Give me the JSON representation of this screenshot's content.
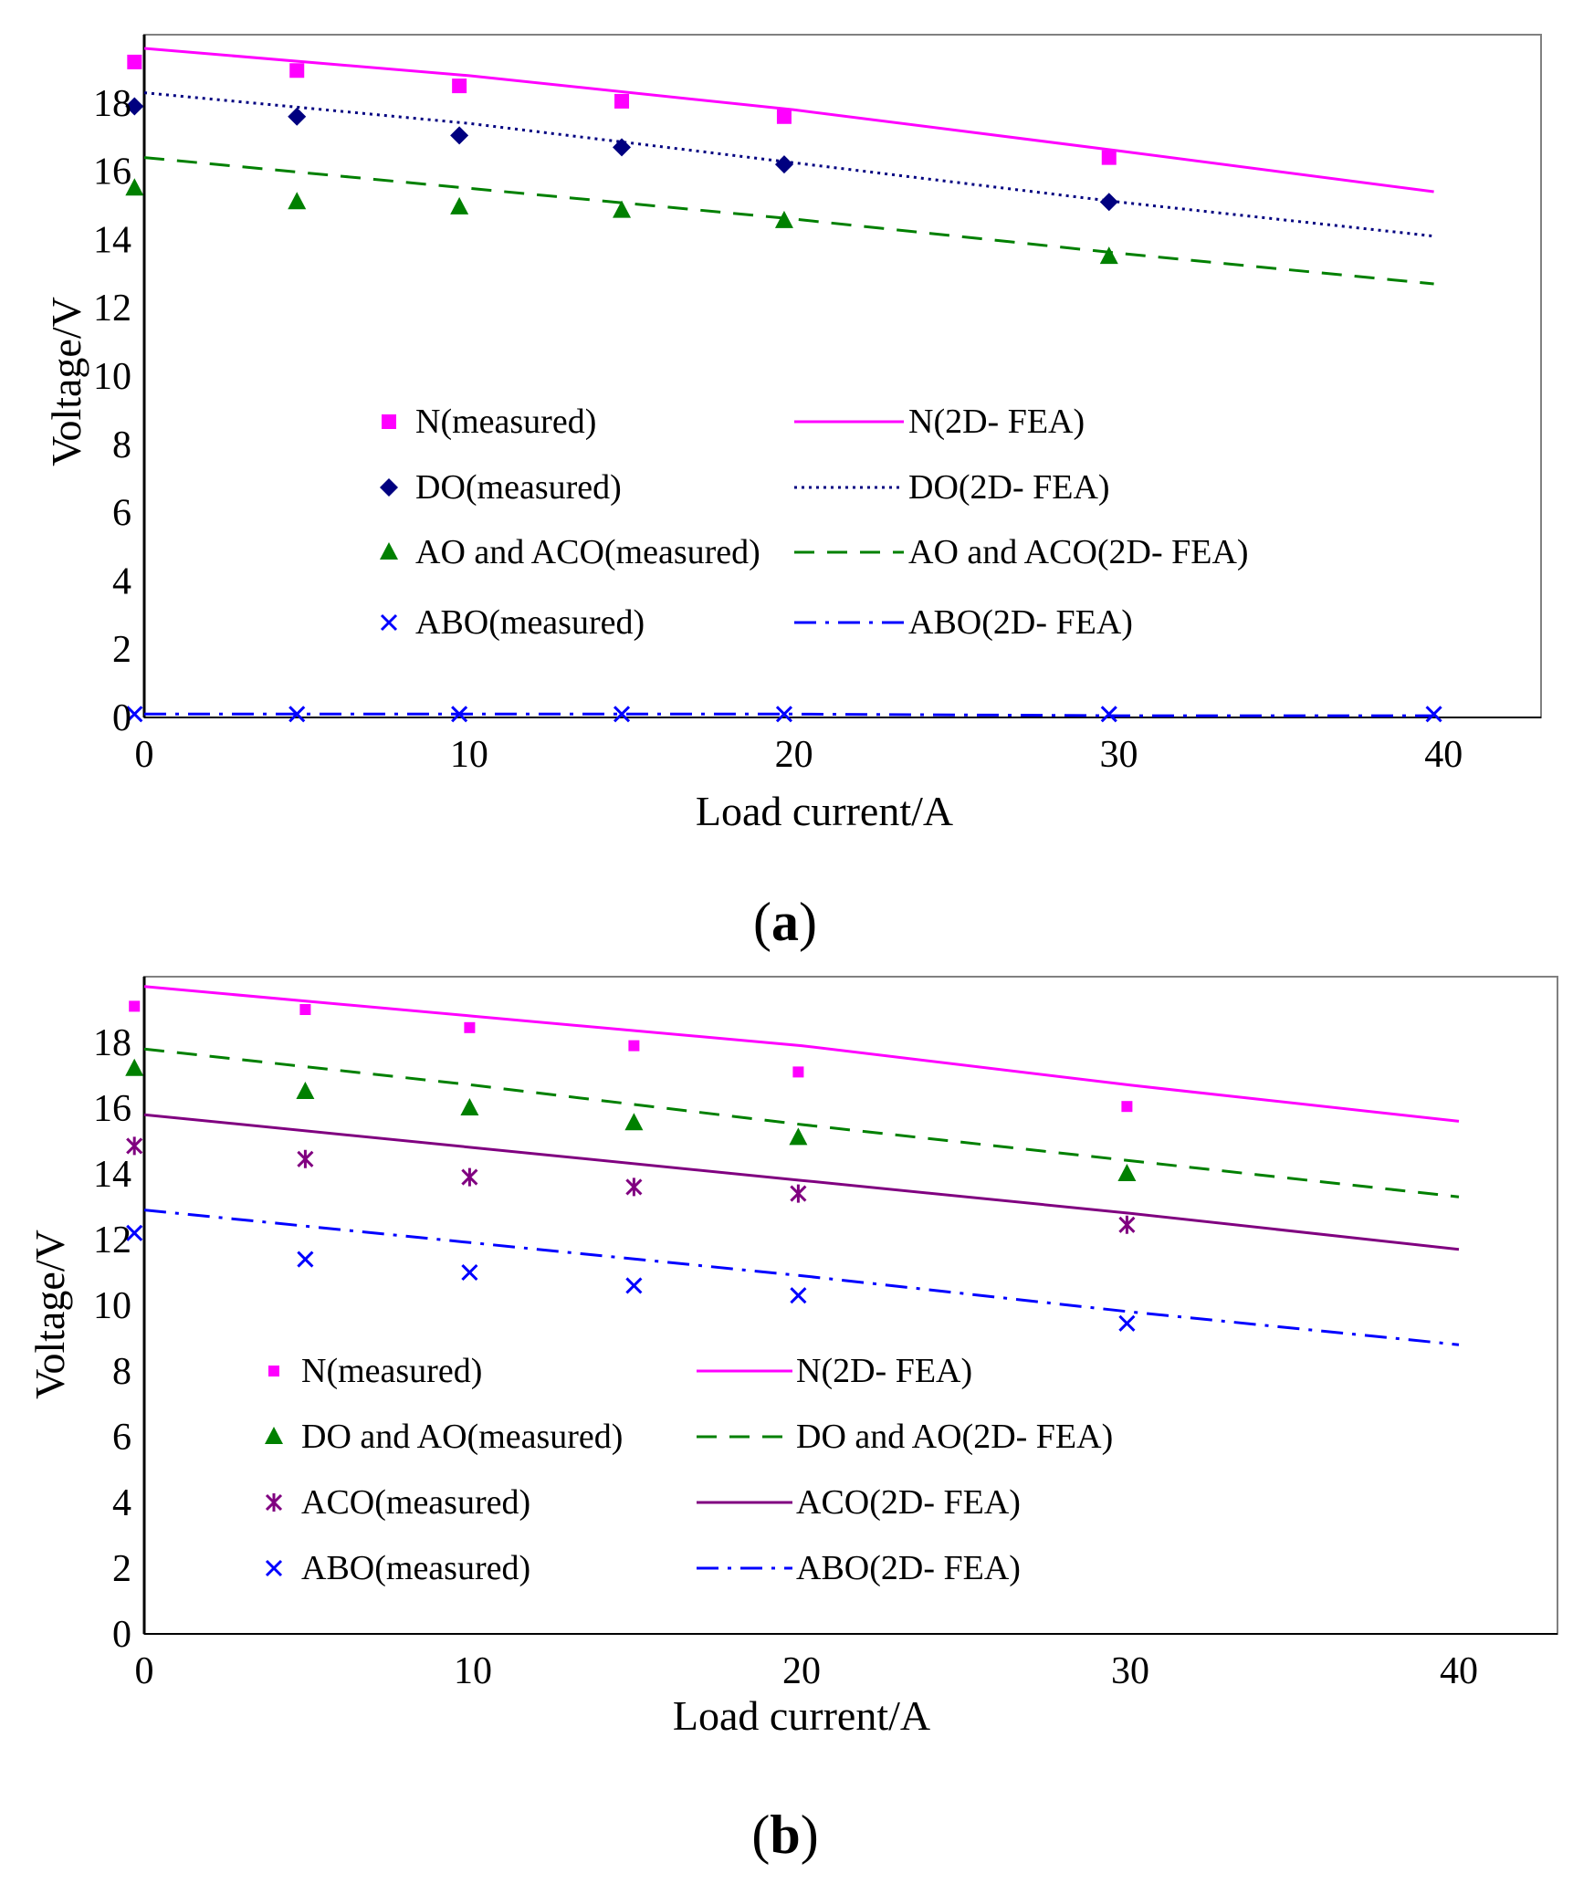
{
  "colors": {
    "N": "#ff00ff",
    "DO": "#000080",
    "AO": "#008000",
    "ACO": "#800080",
    "ABO": "#0000ff"
  },
  "panels": [
    {
      "label_open": "(",
      "label_letter": "a",
      "label_close": ")"
    },
    {
      "label_open": "(",
      "label_letter": "b",
      "label_close": ")"
    }
  ],
  "chart_data": [
    {
      "type": "line",
      "xlabel": "Load current/A",
      "ylabel": "Voltage/V",
      "xlim": [
        0,
        43
      ],
      "ylim": [
        0,
        20
      ],
      "xticks": [
        "0",
        "10",
        "20",
        "30",
        "40"
      ],
      "yticks": [
        "0",
        "2",
        "4",
        "6",
        "8",
        "10",
        "12",
        "14",
        "16",
        "18"
      ],
      "legend": {
        "left": [
          "N(measured)",
          "DO(measured)",
          "AO and ACO(measured)",
          "ABO(measured)"
        ],
        "right": [
          "N(2D- FEA)",
          "DO(2D- FEA)",
          "AO and ACO(2D- FEA)",
          "ABO(2D- FEA)"
        ]
      },
      "series": [
        {
          "name": "N(measured)",
          "kind": "points",
          "marker": "square",
          "color_key": "N",
          "x": [
            -0.3,
            4.7,
            9.7,
            14.7,
            19.7,
            29.7
          ],
          "y": [
            19.2,
            18.95,
            18.5,
            18.05,
            17.6,
            16.4
          ]
        },
        {
          "name": "DO(measured)",
          "kind": "points",
          "marker": "diamond",
          "color_key": "DO",
          "x": [
            -0.3,
            4.7,
            9.7,
            14.7,
            19.7,
            29.7
          ],
          "y": [
            17.9,
            17.6,
            17.05,
            16.7,
            16.2,
            15.1
          ]
        },
        {
          "name": "AO and ACO(measured)",
          "kind": "points",
          "marker": "triangle",
          "color_key": "AO",
          "x": [
            -0.3,
            4.7,
            9.7,
            14.7,
            19.7,
            29.7
          ],
          "y": [
            15.5,
            15.1,
            14.95,
            14.85,
            14.55,
            13.5
          ]
        },
        {
          "name": "ABO(measured)",
          "kind": "points",
          "marker": "x",
          "color_key": "ABO",
          "x": [
            -0.3,
            4.7,
            9.7,
            14.7,
            19.7,
            29.7,
            39.7
          ],
          "y": [
            0.1,
            0.1,
            0.1,
            0.1,
            0.1,
            0.1,
            0.1
          ]
        },
        {
          "name": "N(2D- FEA)",
          "kind": "line",
          "dash": "solid",
          "color_key": "N",
          "x": [
            0,
            10,
            20,
            30,
            39.7
          ],
          "y": [
            19.6,
            18.8,
            17.8,
            16.6,
            15.4
          ]
        },
        {
          "name": "DO(2D- FEA)",
          "kind": "line",
          "dash": "dotted",
          "color_key": "DO",
          "x": [
            0,
            10,
            20,
            30,
            39.7
          ],
          "y": [
            18.3,
            17.4,
            16.25,
            15.1,
            14.1
          ]
        },
        {
          "name": "AO and ACO(2D- FEA)",
          "kind": "line",
          "dash": "dashed",
          "color_key": "AO",
          "x": [
            0,
            10,
            20,
            30,
            39.7
          ],
          "y": [
            16.4,
            15.5,
            14.6,
            13.6,
            12.7
          ]
        },
        {
          "name": "ABO(2D- FEA)",
          "kind": "line",
          "dash": "dashdot",
          "color_key": "ABO",
          "x": [
            0,
            10,
            20,
            30,
            39.7
          ],
          "y": [
            0.1,
            0.1,
            0.1,
            0.05,
            0.05
          ]
        }
      ]
    },
    {
      "type": "line",
      "xlabel": "Load current/A",
      "ylabel": "Voltage/V",
      "xlim": [
        0,
        43
      ],
      "ylim": [
        0,
        20
      ],
      "xticks": [
        "0",
        "10",
        "20",
        "30",
        "40"
      ],
      "yticks": [
        "0",
        "2",
        "4",
        "6",
        "8",
        "10",
        "12",
        "14",
        "16",
        "18"
      ],
      "legend": {
        "left": [
          "N(measured)",
          "DO and AO(measured)",
          "ACO(measured)",
          "ABO(measured)"
        ],
        "right": [
          "N(2D- FEA)",
          "DO and AO(2D- FEA)",
          "ACO(2D- FEA)",
          "ABO(2D- FEA)"
        ]
      },
      "series": [
        {
          "name": "N(measured)",
          "kind": "points",
          "marker": "square-small",
          "color_key": "N",
          "x": [
            -0.3,
            4.9,
            9.9,
            14.9,
            19.9,
            29.9
          ],
          "y": [
            19.1,
            19.0,
            18.45,
            17.9,
            17.1,
            16.05
          ]
        },
        {
          "name": "DO and AO(measured)",
          "kind": "points",
          "marker": "triangle",
          "color_key": "AO",
          "x": [
            -0.3,
            4.9,
            9.9,
            14.9,
            19.9,
            29.9
          ],
          "y": [
            17.2,
            16.5,
            16.0,
            15.55,
            15.1,
            14.0
          ]
        },
        {
          "name": "ACO(measured)",
          "kind": "points",
          "marker": "star",
          "color_key": "ACO",
          "x": [
            -0.3,
            4.9,
            9.9,
            14.9,
            19.9,
            29.9
          ],
          "y": [
            14.85,
            14.45,
            13.9,
            13.6,
            13.4,
            12.45
          ]
        },
        {
          "name": "ABO(measured)",
          "kind": "points",
          "marker": "x",
          "color_key": "ABO",
          "x": [
            -0.3,
            4.9,
            9.9,
            14.9,
            19.9,
            29.9
          ],
          "y": [
            12.2,
            11.4,
            11.0,
            10.6,
            10.3,
            9.45
          ]
        },
        {
          "name": "N(2D- FEA)",
          "kind": "line",
          "dash": "solid",
          "color_key": "N",
          "x": [
            0,
            10,
            20,
            30,
            40
          ],
          "y": [
            19.7,
            18.8,
            17.9,
            16.7,
            15.6
          ]
        },
        {
          "name": "DO and AO(2D- FEA)",
          "kind": "line",
          "dash": "dashed",
          "color_key": "AO",
          "x": [
            0,
            10,
            20,
            30,
            40
          ],
          "y": [
            17.8,
            16.7,
            15.5,
            14.4,
            13.3
          ]
        },
        {
          "name": "ACO(2D- FEA)",
          "kind": "line",
          "dash": "solid",
          "color_key": "ACO",
          "x": [
            0,
            10,
            20,
            30,
            40
          ],
          "y": [
            15.8,
            14.8,
            13.8,
            12.8,
            11.7
          ]
        },
        {
          "name": "ABO(2D- FEA)",
          "kind": "line",
          "dash": "dashdot",
          "color_key": "ABO",
          "x": [
            0,
            10,
            20,
            30,
            40
          ],
          "y": [
            12.9,
            11.9,
            10.9,
            9.8,
            8.8
          ]
        }
      ]
    }
  ]
}
